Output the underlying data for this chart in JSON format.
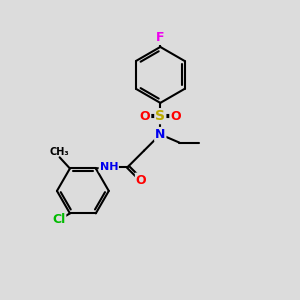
{
  "bg_color": "#dcdcdc",
  "bond_color": "#000000",
  "bond_width": 1.5,
  "atom_colors": {
    "F": "#ee00ee",
    "S": "#bbaa00",
    "O": "#ff0000",
    "N": "#0000ee",
    "Cl": "#00bb00",
    "C": "#000000",
    "H": "#555555"
  },
  "font_size": 9,
  "small_font_size": 8,
  "figsize": [
    3.0,
    3.0
  ],
  "dpi": 100
}
